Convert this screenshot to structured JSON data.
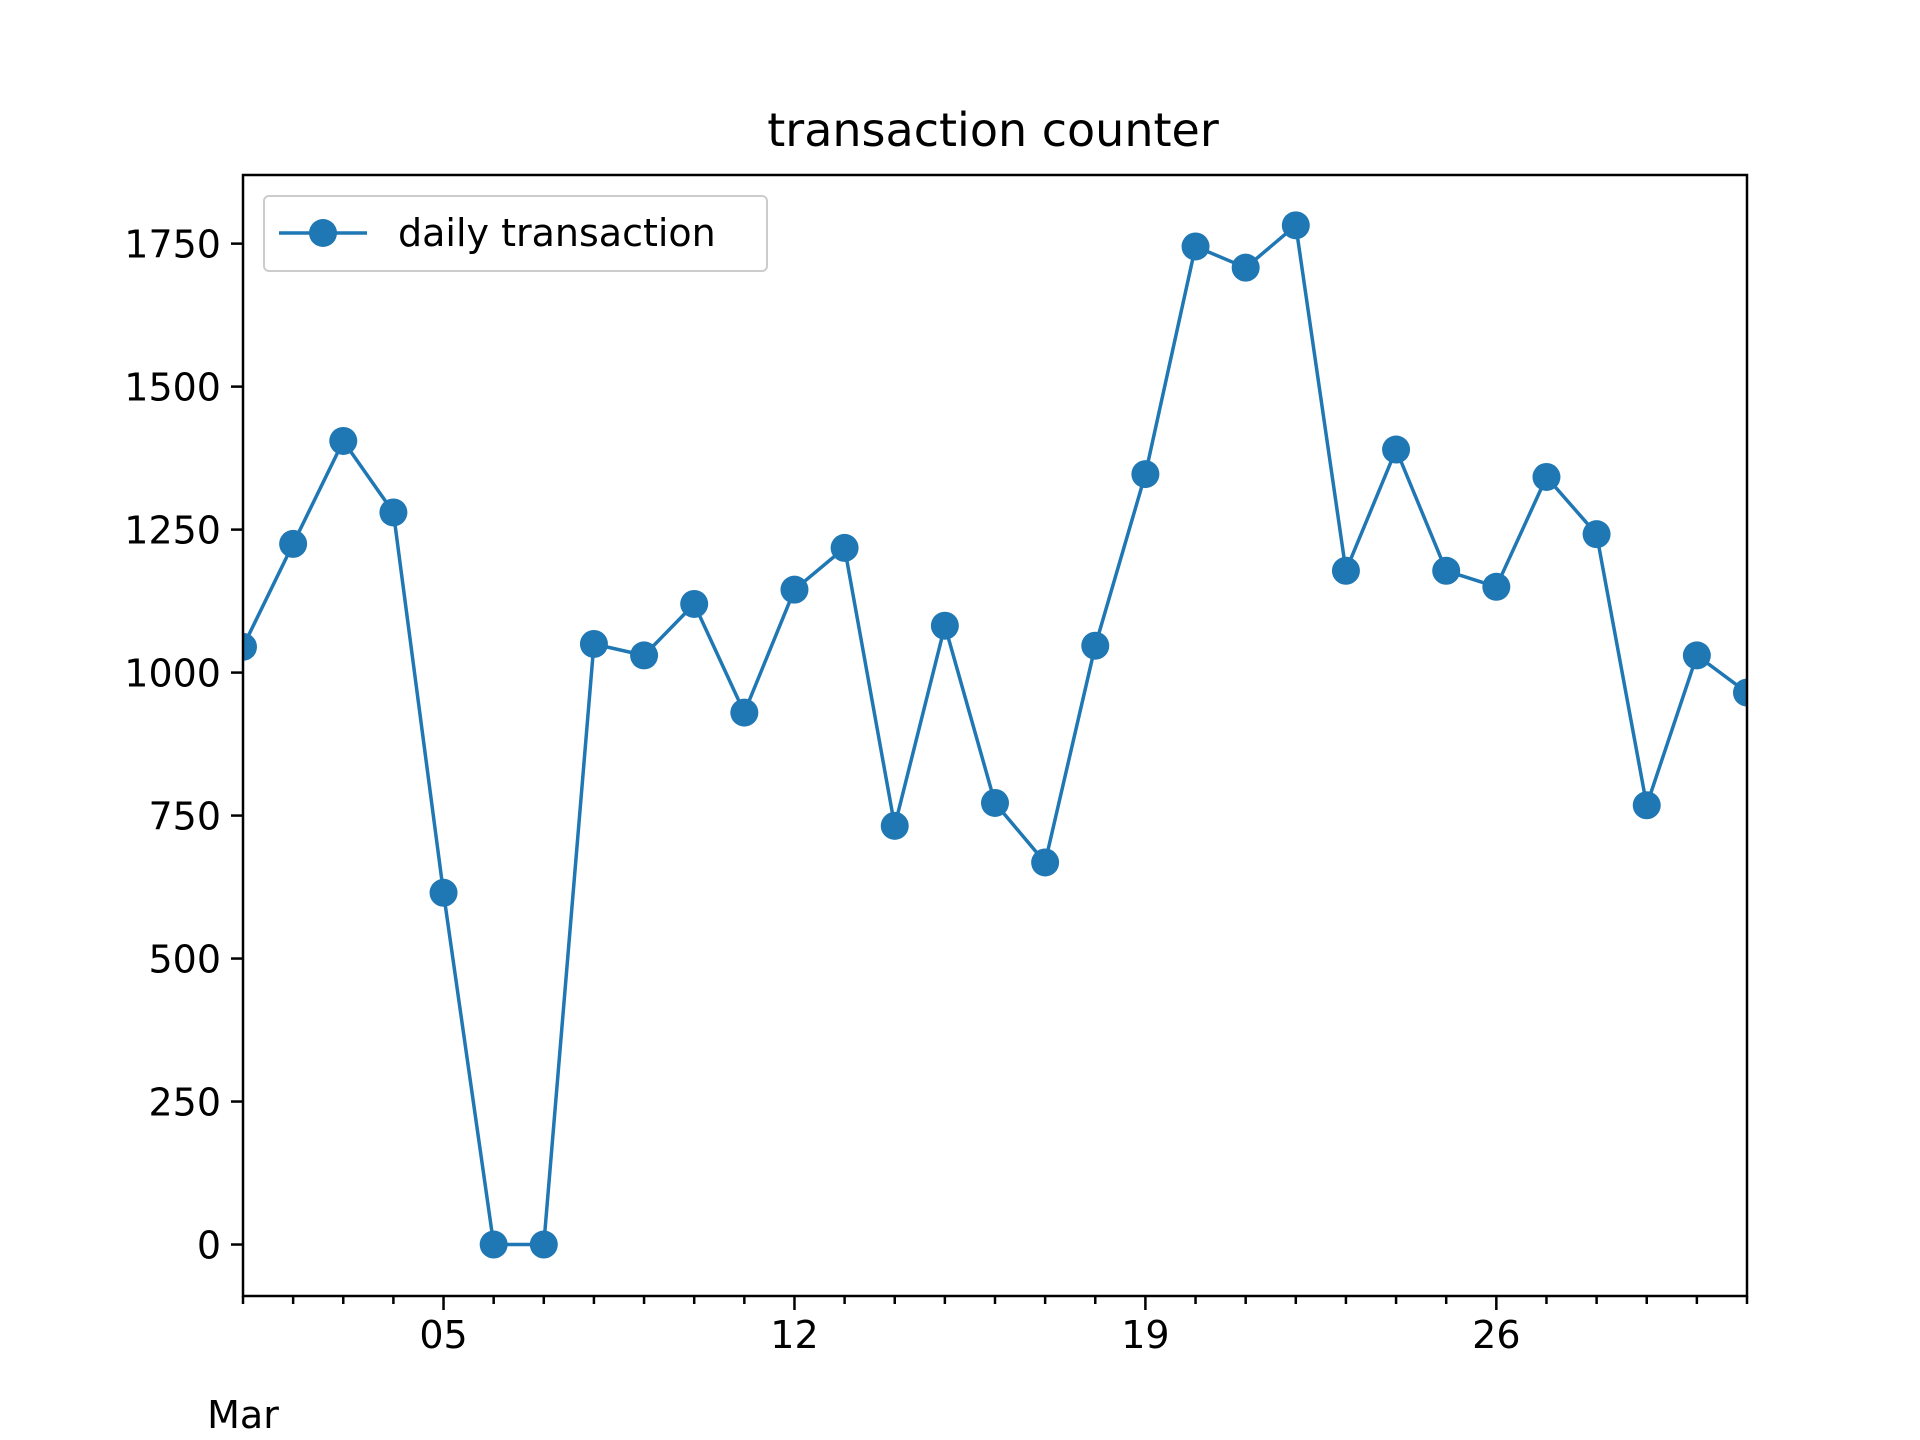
{
  "chart_data": {
    "type": "line",
    "title": "transaction counter",
    "xlabel": "",
    "ylabel": "",
    "x_axis_type": "date",
    "x_month_label": "Mar",
    "xlim": [
      "2018-03-01",
      "2018-03-31"
    ],
    "ylim": [
      -90,
      1870
    ],
    "x_ticks": [
      {
        "date": "2018-03-05",
        "label": "05"
      },
      {
        "date": "2018-03-12",
        "label": "12"
      },
      {
        "date": "2018-03-19",
        "label": "19"
      },
      {
        "date": "2018-03-26",
        "label": "26"
      }
    ],
    "y_ticks": [
      0,
      250,
      500,
      750,
      1000,
      1250,
      1500,
      1750
    ],
    "grid": false,
    "legend": {
      "position": "top-left"
    },
    "series": [
      {
        "name": "daily transaction",
        "color": "#1f77b4",
        "marker": "circle",
        "x": [
          "2018-03-01",
          "2018-03-02",
          "2018-03-03",
          "2018-03-04",
          "2018-03-05",
          "2018-03-06",
          "2018-03-07",
          "2018-03-08",
          "2018-03-09",
          "2018-03-10",
          "2018-03-11",
          "2018-03-12",
          "2018-03-13",
          "2018-03-14",
          "2018-03-15",
          "2018-03-16",
          "2018-03-17",
          "2018-03-18",
          "2018-03-19",
          "2018-03-20",
          "2018-03-21",
          "2018-03-22",
          "2018-03-23",
          "2018-03-24",
          "2018-03-25",
          "2018-03-26",
          "2018-03-27",
          "2018-03-28",
          "2018-03-29",
          "2018-03-30",
          "2018-03-31"
        ],
        "values": [
          1045,
          1225,
          1405,
          1280,
          615,
          0,
          0,
          1050,
          1030,
          1120,
          930,
          1145,
          1218,
          732,
          1082,
          772,
          668,
          1047,
          1347,
          1745,
          1708,
          1782,
          1178,
          1390,
          1178,
          1150,
          1342,
          1242,
          768,
          1030,
          965
        ]
      }
    ]
  }
}
